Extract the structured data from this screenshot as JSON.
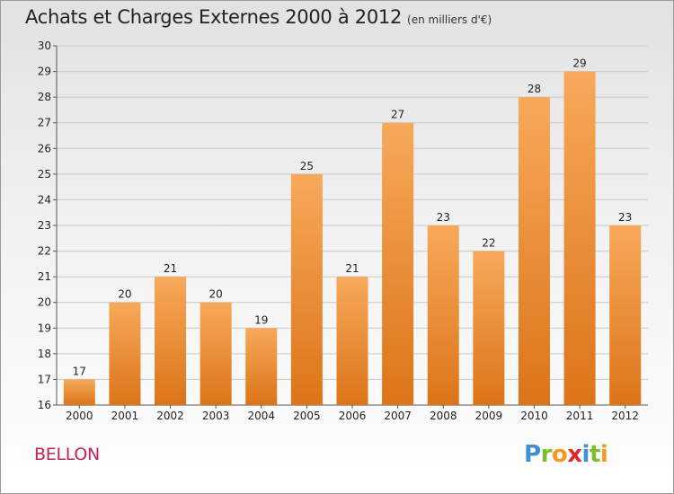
{
  "header": {
    "title": "Achats et Charges Externes 2000 à 2012",
    "unit": "(en milliers d'€)"
  },
  "footer": {
    "commune": "BELLON",
    "logo_letters": [
      "P",
      "r",
      "o",
      "x",
      "i",
      "t",
      "i"
    ],
    "logo_colors": [
      "#3f8fd3",
      "#7bbf2a",
      "#f39a1d",
      "#e3262e",
      "#3f8fd3",
      "#7bbf2a",
      "#f39a1d"
    ]
  },
  "colors": {
    "bar_top": "#f7a95a",
    "bar_bottom": "#dc7418",
    "axis": "#555555",
    "grid": "#c8c8c8"
  },
  "chart_data": {
    "type": "bar",
    "title": "Achats et Charges Externes 2000 à 2012",
    "subtitle": "(en milliers d'€)",
    "xlabel": "",
    "ylabel": "",
    "categories": [
      "2000",
      "2001",
      "2002",
      "2003",
      "2004",
      "2005",
      "2006",
      "2007",
      "2008",
      "2009",
      "2010",
      "2011",
      "2012"
    ],
    "values": [
      17,
      20,
      21,
      20,
      19,
      25,
      21,
      27,
      23,
      22,
      28,
      29,
      23
    ],
    "ylim": [
      16,
      30
    ],
    "yticks": [
      16,
      17,
      18,
      19,
      20,
      21,
      22,
      23,
      24,
      25,
      26,
      27,
      28,
      29,
      30
    ],
    "grid": true
  }
}
